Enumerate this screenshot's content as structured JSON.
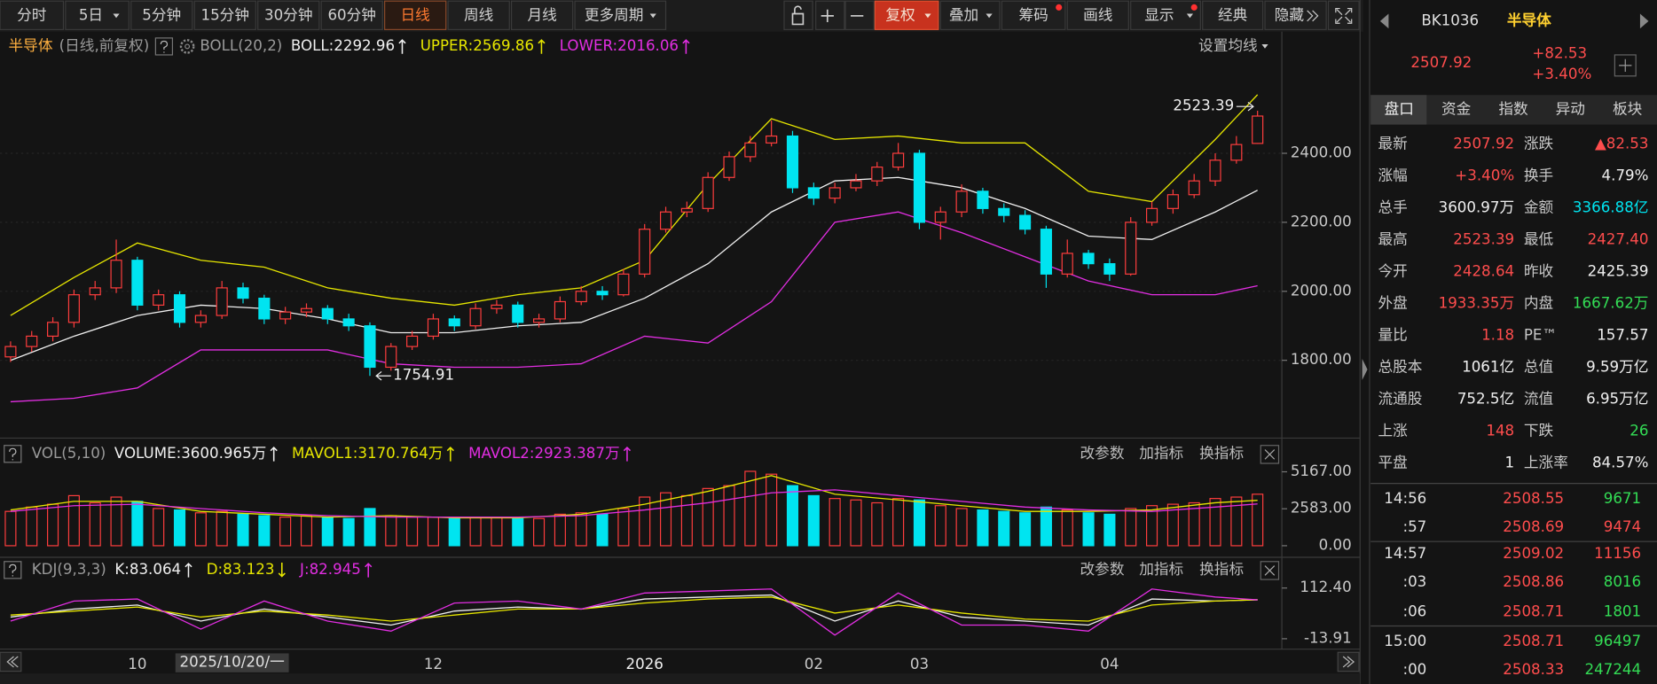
{
  "toolbar": {
    "periods": [
      "分时",
      "5日",
      "5分钟",
      "15分钟",
      "30分钟",
      "60分钟",
      "日线",
      "周线",
      "月线",
      "更多周期"
    ],
    "tools": [
      "复权",
      "叠加",
      "筹码",
      "画线",
      "显示",
      "经典",
      "隐藏"
    ]
  },
  "chart_data": [
    {
      "type": "candlestick",
      "title": "半导体",
      "subtitle": "(日线,前复权)",
      "indicator": "BOLL(20,2)",
      "settings_label": "设置均线",
      "categories": [
        null,
        null,
        null,
        null,
        null,
        null,
        "10",
        null,
        "2025/10/20/一",
        null,
        null,
        null,
        null,
        null,
        null,
        null,
        null,
        null,
        null,
        null,
        "12",
        null,
        null,
        null,
        null,
        null,
        null,
        null,
        null,
        null,
        "2026",
        null,
        null,
        null,
        null,
        null,
        null,
        null,
        "02",
        null,
        null,
        null,
        null,
        "03",
        null,
        null,
        null,
        null,
        null,
        null,
        null,
        null,
        "04",
        null,
        null,
        null,
        null,
        null,
        null,
        null
      ],
      "open": [
        1810,
        1840,
        1870,
        1910,
        1990,
        2010,
        2090,
        1960,
        1990,
        1910,
        1930,
        2010,
        1980,
        1920,
        1940,
        1950,
        1920,
        1900,
        1780,
        1840,
        1870,
        1920,
        1900,
        1950,
        1960,
        1910,
        1920,
        1970,
        2000,
        1990,
        2050,
        2180,
        2230,
        2240,
        2330,
        2390,
        2430,
        2450,
        2300,
        2270,
        2300,
        2320,
        2360,
        2400,
        2200,
        2230,
        2290,
        2240,
        2220,
        2180,
        2050,
        2110,
        2080,
        2050,
        2200,
        2240,
        2280,
        2320,
        2380,
        2428.64
      ],
      "high": [
        1855,
        1885,
        1925,
        2005,
        2030,
        2150,
        2100,
        2005,
        2000,
        1945,
        2030,
        2025,
        1990,
        1955,
        1965,
        1960,
        1935,
        1910,
        1850,
        1885,
        1935,
        1930,
        1965,
        1975,
        1970,
        1935,
        1985,
        2015,
        2015,
        2065,
        2195,
        2245,
        2260,
        2345,
        2405,
        2450,
        2495,
        2465,
        2315,
        2315,
        2340,
        2375,
        2430,
        2410,
        2245,
        2310,
        2300,
        2255,
        2235,
        2190,
        2150,
        2120,
        2095,
        2215,
        2260,
        2295,
        2340,
        2400,
        2450,
        2523.39
      ],
      "low": [
        1795,
        1825,
        1855,
        1895,
        1975,
        1995,
        1945,
        1945,
        1895,
        1895,
        1920,
        1965,
        1905,
        1905,
        1925,
        1905,
        1885,
        1754.91,
        1770,
        1830,
        1860,
        1885,
        1890,
        1935,
        1895,
        1895,
        1910,
        1960,
        1975,
        1985,
        2040,
        2170,
        2215,
        2230,
        2320,
        2375,
        2420,
        2285,
        2250,
        2255,
        2290,
        2305,
        2350,
        2180,
        2150,
        2215,
        2225,
        2200,
        2165,
        2010,
        2040,
        2065,
        2030,
        2045,
        2190,
        2225,
        2270,
        2305,
        2370,
        2427.4
      ],
      "close": [
        1840,
        1870,
        1910,
        1990,
        2010,
        2090,
        1960,
        1990,
        1910,
        1930,
        2010,
        1980,
        1920,
        1940,
        1950,
        1920,
        1900,
        1780,
        1840,
        1870,
        1920,
        1900,
        1950,
        1960,
        1910,
        1920,
        1970,
        2000,
        1990,
        2050,
        2180,
        2230,
        2240,
        2330,
        2390,
        2430,
        2450,
        2300,
        2270,
        2300,
        2320,
        2360,
        2400,
        2200,
        2230,
        2290,
        2240,
        2220,
        2180,
        2050,
        2110,
        2080,
        2050,
        2200,
        2240,
        2280,
        2320,
        2380,
        2425.39,
        2507.92
      ],
      "up_color": "#ff3d3d",
      "down_color": "#00e4f0",
      "ylim": [
        1590,
        2676
      ],
      "yticks": [
        {
          "value": 1800,
          "label": "1800.00"
        },
        {
          "value": 2000,
          "label": "2000.00"
        },
        {
          "value": 2200,
          "label": "2200.00"
        },
        {
          "value": 2400,
          "label": "2400.00"
        }
      ],
      "grid": true,
      "overlay": {
        "x": [
          0,
          3,
          6,
          9,
          12,
          15,
          18,
          21,
          24,
          27,
          30,
          33,
          36,
          39,
          42,
          45,
          48,
          51,
          54,
          57,
          59
        ],
        "series": [
          {
            "name": "BOLL:",
            "color": "#f0f0f0",
            "trend": "up",
            "values": [
              1800,
              1870,
              1930,
              1960,
              1950,
              1920,
              1880,
              1880,
              1900,
              1910,
              1980,
              2080,
              2230,
              2320,
              2330,
              2300,
              2240,
              2160,
              2150,
              2230,
              2292.96
            ]
          },
          {
            "name": "UPPER:",
            "color": "#e6e600",
            "trend": "up",
            "values": [
              1930,
              2040,
              2140,
              2090,
              2070,
              2010,
              1980,
              1960,
              1990,
              2010,
              2090,
              2310,
              2500,
              2440,
              2450,
              2430,
              2430,
              2290,
              2260,
              2440,
              2569.86
            ]
          },
          {
            "name": "LOWER:",
            "color": "#e22ee2",
            "trend": "up",
            "values": [
              1680,
              1690,
              1720,
              1830,
              1830,
              1830,
              1790,
              1780,
              1780,
              1790,
              1870,
              1850,
              1970,
              2200,
              2230,
              2170,
              2100,
              2030,
              1990,
              1990,
              2016.06
            ]
          }
        ]
      }
    },
    {
      "type": "bar",
      "indicator": "VOL(5,10)",
      "buttons": [
        "改参数",
        "加指标",
        "换指标"
      ],
      "series": [
        {
          "name": "VOLUME:",
          "color": "#f0f0f0",
          "trend": "up",
          "current_label": "3600.965万",
          "values": [
            2400,
            2700,
            2900,
            3500,
            3000,
            3400,
            3100,
            2600,
            2500,
            2300,
            2400,
            2200,
            2100,
            2000,
            2100,
            2000,
            1900,
            2600,
            2100,
            2000,
            2000,
            1900,
            2000,
            2000,
            1900,
            1900,
            2200,
            2300,
            2200,
            2600,
            3400,
            3700,
            3500,
            4000,
            4200,
            5200,
            5000,
            4200,
            3500,
            3300,
            3200,
            3000,
            3300,
            3200,
            2800,
            2600,
            2500,
            2400,
            2300,
            2700,
            2500,
            2300,
            2200,
            2600,
            2800,
            2900,
            3000,
            3300,
            3400,
            3600.965
          ]
        }
      ],
      "ylim": [
        -590,
        5460
      ],
      "yticks": [
        {
          "value": 0,
          "label": "0.00"
        },
        {
          "value": 2583,
          "label": "2583.00"
        },
        {
          "value": 5167,
          "label": "5167.00"
        }
      ],
      "overlay": {
        "x": [
          0,
          3,
          6,
          9,
          12,
          15,
          18,
          21,
          24,
          27,
          30,
          33,
          36,
          39,
          42,
          45,
          48,
          51,
          54,
          57,
          59
        ],
        "series": [
          {
            "name": "MAVOL1:",
            "color": "#e6e600",
            "trend": "up",
            "current_label": "3170.764万",
            "values": [
              2500,
              3100,
              3100,
              2400,
              2200,
              2000,
              2100,
              1950,
              1950,
              2200,
              2900,
              3800,
              4900,
              3600,
              3200,
              2800,
              2400,
              2400,
              2500,
              3000,
              3170.764
            ]
          },
          {
            "name": "MAVOL2:",
            "color": "#e22ee2",
            "trend": "up",
            "current_label": "2923.387万",
            "values": [
              2400,
              2800,
              2900,
              2600,
              2300,
              2100,
              2000,
              2000,
              2000,
              2100,
              2500,
              3000,
              3700,
              3900,
              3500,
              3100,
              2700,
              2500,
              2400,
              2700,
              2923.387
            ]
          }
        ]
      }
    },
    {
      "type": "line",
      "indicator": "KDJ(9,3,3)",
      "buttons": [
        "改参数",
        "加指标",
        "换指标"
      ],
      "x": [
        0,
        3,
        6,
        9,
        12,
        15,
        18,
        21,
        24,
        27,
        30,
        33,
        36,
        39,
        42,
        45,
        48,
        51,
        54,
        57,
        59
      ],
      "series": [
        {
          "name": "K:",
          "color": "#f0f0f0",
          "trend": "up",
          "values": [
            40,
            60,
            70,
            30,
            60,
            40,
            20,
            55,
            65,
            60,
            85,
            90,
            95,
            30,
            80,
            40,
            30,
            20,
            85,
            80,
            83.064
          ]
        },
        {
          "name": "D:",
          "color": "#e6e600",
          "trend": "down",
          "values": [
            45,
            55,
            65,
            40,
            55,
            45,
            30,
            45,
            60,
            60,
            75,
            85,
            90,
            50,
            70,
            50,
            35,
            30,
            70,
            80,
            83.123
          ]
        },
        {
          "name": "J:",
          "color": "#e22ee2",
          "trend": "up",
          "values": [
            30,
            80,
            85,
            10,
            80,
            30,
            5,
            75,
            80,
            60,
            100,
            105,
            110,
            -5,
            100,
            20,
            20,
            5,
            110,
            90,
            82.945
          ]
        }
      ],
      "ylim": [
        -32,
        131
      ],
      "yticks": [
        -13.91,
        {
          "value": 112.4,
          "label": "112.40"
        }
      ]
    }
  ],
  "quote": {
    "code": "BK1036",
    "name": "半导体",
    "price": "2507.92",
    "change": "+82.53",
    "change_pct": "+3.40%"
  },
  "tabs": [
    "盘口",
    "资金",
    "指数",
    "异动",
    "板块"
  ],
  "stats": [
    {
      "label": "最新",
      "value": "2507.92",
      "color": "#ff4d4d"
    },
    {
      "label": "涨跌",
      "value": "▲82.53",
      "color": "#ff4d4d"
    },
    {
      "label": "涨幅",
      "value": "+3.40%",
      "color": "#ff4d4d"
    },
    {
      "label": "换手",
      "value": "4.79%",
      "color": "#f0f0f0"
    },
    {
      "label": "总手",
      "value": "3600.97万",
      "color": "#f0f0f0"
    },
    {
      "label": "金额",
      "value": "3366.88亿",
      "color": "#00e4f0"
    },
    {
      "label": "最高",
      "value": "2523.39",
      "color": "#ff4d4d"
    },
    {
      "label": "最低",
      "value": "2427.40",
      "color": "#ff4d4d"
    },
    {
      "label": "今开",
      "value": "2428.64",
      "color": "#ff4d4d"
    },
    {
      "label": "昨收",
      "value": "2425.39",
      "color": "#f0f0f0"
    },
    {
      "label": "外盘",
      "value": "1933.35万",
      "color": "#ff4d4d"
    },
    {
      "label": "内盘",
      "value": "1667.62万",
      "color": "#33dd55"
    },
    {
      "label": "量比",
      "value": "1.18",
      "color": "#ff4d4d"
    },
    {
      "label": "PE™",
      "value": "157.57",
      "color": "#f0f0f0"
    },
    {
      "label": "总股本",
      "value": "1061亿",
      "color": "#f0f0f0"
    },
    {
      "label": "总值",
      "value": "9.59万亿",
      "color": "#f0f0f0"
    },
    {
      "label": "流通股",
      "value": "752.5亿",
      "color": "#f0f0f0"
    },
    {
      "label": "流值",
      "value": "6.95万亿",
      "color": "#f0f0f0"
    },
    {
      "label": "上涨",
      "value": "148",
      "color": "#ff4d4d"
    },
    {
      "label": "下跌",
      "value": "26",
      "color": "#33dd55"
    },
    {
      "label": "平盘",
      "value": "1",
      "color": "#f0f0f0"
    },
    {
      "label": "上涨率",
      "value": "84.57%",
      "color": "#f0f0f0"
    }
  ],
  "ticks": [
    {
      "time": "14:56",
      "price": "2508.55",
      "volume": "9671",
      "volume_color": "#33dd55"
    },
    {
      "time": ":57",
      "price": "2508.69",
      "volume": "9474",
      "volume_color": "#ff4d4d"
    },
    {
      "time": "14:57",
      "price": "2509.02",
      "volume": "11156",
      "volume_color": "#ff4d4d"
    },
    {
      "time": ":03",
      "price": "2508.86",
      "volume": "8016",
      "volume_color": "#33dd55"
    },
    {
      "time": ":06",
      "price": "2508.71",
      "volume": "1801",
      "volume_color": "#33dd55"
    },
    {
      "time": "15:00",
      "price": "2508.71",
      "volume": "96497",
      "volume_color": "#33dd55"
    },
    {
      "time": ":00",
      "price": "2508.33",
      "volume": "247244",
      "volume_color": "#33dd55"
    }
  ]
}
